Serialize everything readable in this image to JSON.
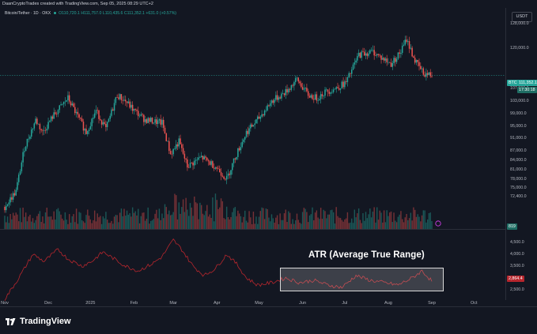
{
  "header": {
    "attribution": "DaanCryptoTrades created with TradingView.com, Sep 05, 2025 08:29 UTC+2"
  },
  "symbol": {
    "name": "Bitcoin/Tether · 1D · OKX",
    "open": "O110,720.1",
    "high": "H111,757.0",
    "low": "L110,435.6",
    "close": "C111,352.1",
    "change": "+631.0 (+0.57%)"
  },
  "currency_badge": "USDT",
  "price_tags": {
    "ticker": "BTCUSDT",
    "last_price": "111,352.1",
    "countdown": "17:30:18",
    "volume_value": "819",
    "atr_value": "2,864.4"
  },
  "annotation": {
    "atr_label": "ATR (Average True Range)"
  },
  "price_axis_labels": [
    {
      "text": "128,000.0",
      "v": 128000
    },
    {
      "text": "120,000.0",
      "v": 120000
    },
    {
      "text": "107,000.0",
      "v": 107000
    },
    {
      "text": "103,000.0",
      "v": 103000
    },
    {
      "text": "99,000.0",
      "v": 99000
    },
    {
      "text": "95,000.0",
      "v": 95000
    },
    {
      "text": "91,000.0",
      "v": 91000
    },
    {
      "text": "87,000.0",
      "v": 87000
    },
    {
      "text": "84,000.0",
      "v": 84000
    },
    {
      "text": "81,000.0",
      "v": 81000
    },
    {
      "text": "78,000.0",
      "v": 78000
    },
    {
      "text": "75,000.0",
      "v": 75000
    },
    {
      "text": "72,400.0",
      "v": 72400
    }
  ],
  "atr_axis_labels": [
    {
      "text": "4,500.0",
      "v": 4500
    },
    {
      "text": "4,000.0",
      "v": 4000
    },
    {
      "text": "3,500.0",
      "v": 3500
    },
    {
      "text": "3,000.0",
      "v": 3000
    },
    {
      "text": "2,500.0",
      "v": 2500
    }
  ],
  "time_axis_labels": [
    {
      "text": "Nov",
      "d": 0
    },
    {
      "text": "Dec",
      "d": 31
    },
    {
      "text": "2025",
      "d": 61
    },
    {
      "text": "Feb",
      "d": 92
    },
    {
      "text": "Mar",
      "d": 120
    },
    {
      "text": "Apr",
      "d": 151
    },
    {
      "text": "May",
      "d": 181
    },
    {
      "text": "Jun",
      "d": 212
    },
    {
      "text": "Jul",
      "d": 242
    },
    {
      "text": "Aug",
      "d": 273
    },
    {
      "text": "Sep",
      "d": 304
    },
    {
      "text": "Oct",
      "d": 334
    }
  ],
  "branding": {
    "logo_text": "TradingView"
  },
  "colors": {
    "up": "#26a69a",
    "down": "#ef5350",
    "atr_line": "#b7262d",
    "background": "#131722",
    "last_price_line": "#26a69a"
  },
  "chart_data": {
    "type": "candlestick",
    "symbol": "BTCUSDT",
    "interval": "1D",
    "price_anchors": [
      {
        "d": 0,
        "c": 69000
      },
      {
        "d": 8,
        "c": 74000
      },
      {
        "d": 14,
        "c": 88000
      },
      {
        "d": 22,
        "c": 97000
      },
      {
        "d": 27,
        "c": 93000
      },
      {
        "d": 34,
        "c": 98000
      },
      {
        "d": 45,
        "c": 104000
      },
      {
        "d": 52,
        "c": 98000
      },
      {
        "d": 58,
        "c": 93000
      },
      {
        "d": 65,
        "c": 100000
      },
      {
        "d": 72,
        "c": 94000
      },
      {
        "d": 80,
        "c": 105000
      },
      {
        "d": 86,
        "c": 103000
      },
      {
        "d": 92,
        "c": 100000
      },
      {
        "d": 100,
        "c": 97000
      },
      {
        "d": 112,
        "c": 96000
      },
      {
        "d": 118,
        "c": 86000
      },
      {
        "d": 124,
        "c": 90000
      },
      {
        "d": 130,
        "c": 82000
      },
      {
        "d": 140,
        "c": 85000
      },
      {
        "d": 150,
        "c": 82000
      },
      {
        "d": 158,
        "c": 78000
      },
      {
        "d": 164,
        "c": 85000
      },
      {
        "d": 172,
        "c": 93000
      },
      {
        "d": 180,
        "c": 97000
      },
      {
        "d": 190,
        "c": 103000
      },
      {
        "d": 200,
        "c": 106000
      },
      {
        "d": 208,
        "c": 110000
      },
      {
        "d": 216,
        "c": 105000
      },
      {
        "d": 222,
        "c": 104000
      },
      {
        "d": 228,
        "c": 106000
      },
      {
        "d": 235,
        "c": 107000
      },
      {
        "d": 243,
        "c": 109000
      },
      {
        "d": 252,
        "c": 118000
      },
      {
        "d": 262,
        "c": 119000
      },
      {
        "d": 268,
        "c": 117000
      },
      {
        "d": 275,
        "c": 115000
      },
      {
        "d": 282,
        "c": 119000
      },
      {
        "d": 286,
        "c": 123000
      },
      {
        "d": 292,
        "c": 116000
      },
      {
        "d": 298,
        "c": 112000
      },
      {
        "d": 304,
        "c": 111352
      }
    ],
    "atr_anchors": [
      {
        "d": 0,
        "v": 2100
      },
      {
        "d": 10,
        "v": 3000
      },
      {
        "d": 20,
        "v": 4000
      },
      {
        "d": 28,
        "v": 3700
      },
      {
        "d": 38,
        "v": 4200
      },
      {
        "d": 45,
        "v": 3800
      },
      {
        "d": 55,
        "v": 3500
      },
      {
        "d": 62,
        "v": 3700
      },
      {
        "d": 70,
        "v": 4100
      },
      {
        "d": 78,
        "v": 3800
      },
      {
        "d": 86,
        "v": 3500
      },
      {
        "d": 95,
        "v": 3300
      },
      {
        "d": 105,
        "v": 3600
      },
      {
        "d": 112,
        "v": 3900
      },
      {
        "d": 120,
        "v": 4600
      },
      {
        "d": 126,
        "v": 4200
      },
      {
        "d": 134,
        "v": 3500
      },
      {
        "d": 142,
        "v": 3100
      },
      {
        "d": 150,
        "v": 3400
      },
      {
        "d": 158,
        "v": 4000
      },
      {
        "d": 165,
        "v": 3600
      },
      {
        "d": 172,
        "v": 3000
      },
      {
        "d": 180,
        "v": 2700
      },
      {
        "d": 190,
        "v": 2800
      },
      {
        "d": 200,
        "v": 3000
      },
      {
        "d": 210,
        "v": 2800
      },
      {
        "d": 220,
        "v": 2900
      },
      {
        "d": 230,
        "v": 2700
      },
      {
        "d": 240,
        "v": 2600
      },
      {
        "d": 250,
        "v": 3100
      },
      {
        "d": 260,
        "v": 2900
      },
      {
        "d": 270,
        "v": 2800
      },
      {
        "d": 280,
        "v": 2700
      },
      {
        "d": 290,
        "v": 3000
      },
      {
        "d": 297,
        "v": 3300
      },
      {
        "d": 304,
        "v": 2864
      }
    ],
    "last_price": 111352.1,
    "price_range": [
      69000,
      130000
    ],
    "atr_range": [
      2000,
      5000
    ],
    "date_range_days": [
      0,
      340
    ]
  }
}
